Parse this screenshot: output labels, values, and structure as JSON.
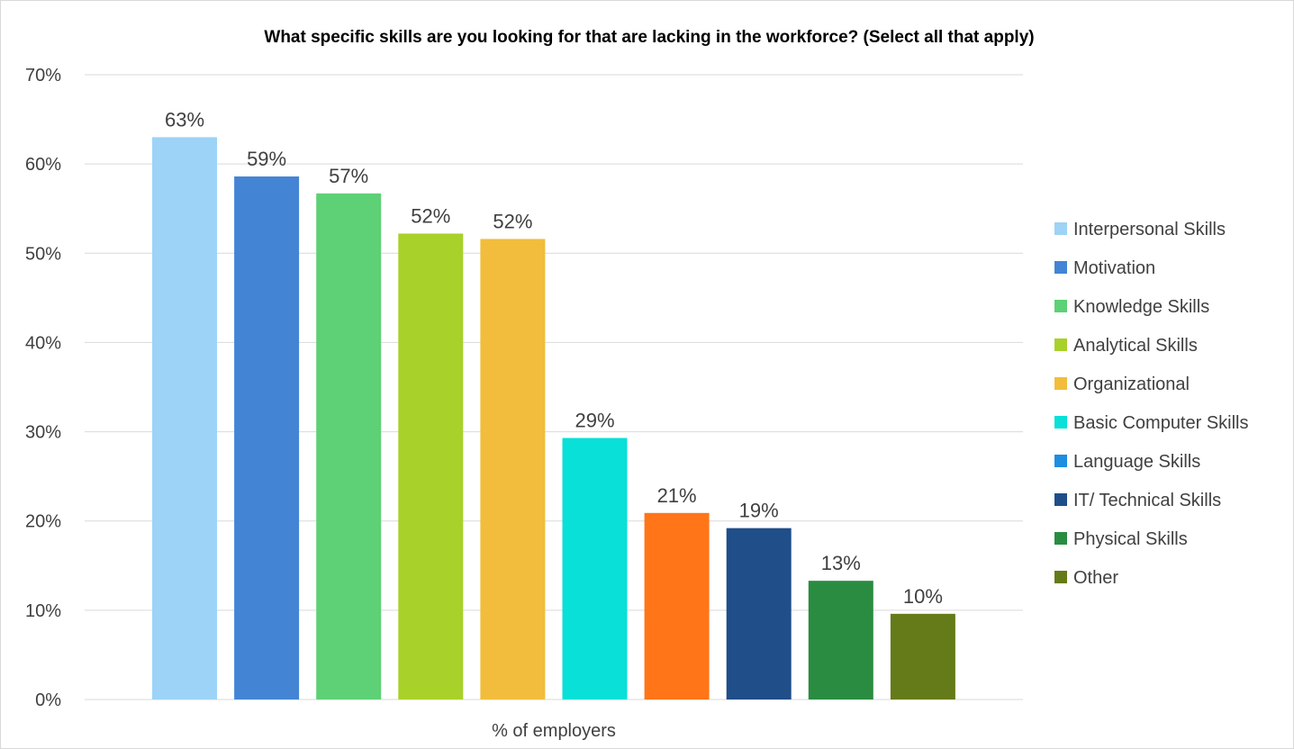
{
  "chart_data": {
    "type": "bar",
    "title": "What specific skills are you looking for that are lacking in the workforce? (Select all that apply)",
    "xlabel": "% of employers",
    "ylabel": "",
    "ylim": [
      0,
      70
    ],
    "yticks": [
      "0%",
      "10%",
      "20%",
      "30%",
      "40%",
      "50%",
      "60%",
      "70%"
    ],
    "ytick_values": [
      0,
      10,
      20,
      30,
      40,
      50,
      60,
      70
    ],
    "grid": true,
    "legend_position": "right",
    "series": [
      {
        "name": "Interpersonal Skills",
        "value": 63,
        "label": "63%",
        "color": "#9dd3f7"
      },
      {
        "name": "Motivation",
        "value": 58.6,
        "label": "59%",
        "color": "#4484d4"
      },
      {
        "name": "Knowledge Skills",
        "value": 56.7,
        "label": "57%",
        "color": "#5ed075"
      },
      {
        "name": "Analytical Skills",
        "value": 52.2,
        "label": "52%",
        "color": "#a8d12a"
      },
      {
        "name": "Organizational",
        "value": 51.6,
        "label": "52%",
        "color": "#f2bd3c"
      },
      {
        "name": "Basic Computer Skills",
        "value": 29.3,
        "label": "29%",
        "color": "#08e0d8"
      },
      {
        "name": "Language Skills",
        "value": 20.9,
        "label": "21%",
        "color": "#ff7518",
        "legend_color": "#1f8de0"
      },
      {
        "name": "IT/ Technical Skills",
        "value": 19.2,
        "label": "19%",
        "color": "#1f4e89"
      },
      {
        "name": "Physical Skills",
        "value": 13.3,
        "label": "13%",
        "color": "#2a8c41"
      },
      {
        "name": "Other",
        "value": 9.6,
        "label": "10%",
        "color": "#657b19"
      }
    ]
  }
}
